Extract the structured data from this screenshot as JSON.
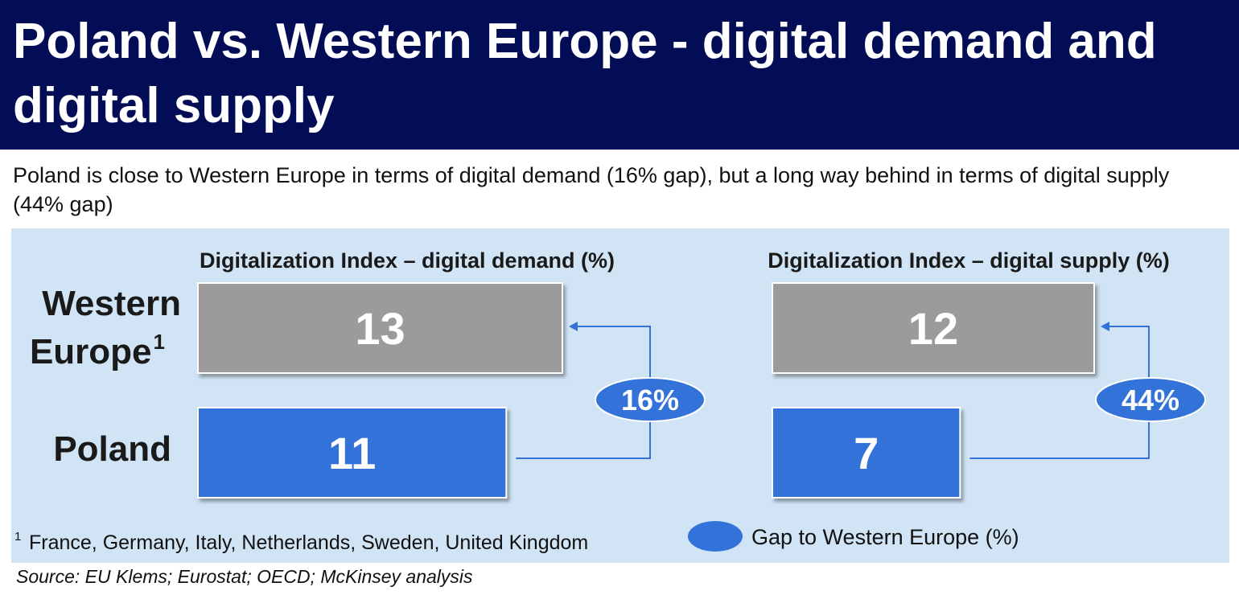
{
  "title": "Poland vs. Western Europe - digital demand and digital supply",
  "subtitle": "Poland is close to Western Europe in terms of digital demand (16% gap), but a long way behind in terms of digital supply (44% gap)",
  "categories": [
    "Western Europe",
    "Poland"
  ],
  "footnote_marker": "1",
  "footnote": "France, Germany, Italy, Netherlands, Sweden, United Kingdom",
  "legend": "Gap to Western Europe (%)",
  "source": "Source: EU Klems; Eurostat; OECD; McKinsey analysis",
  "colors": {
    "header": "#020d55",
    "panel": "#d0e4f5",
    "western_europe": "#9b9b9b",
    "poland": "#3272d9",
    "gap": "#3272d9"
  },
  "chart_data": [
    {
      "type": "bar",
      "title": "Digitalization Index – digital demand (%)",
      "categories": [
        "Western Europe",
        "Poland"
      ],
      "values": [
        13,
        11
      ],
      "gap_label": "16%",
      "xlim": [
        0,
        13
      ]
    },
    {
      "type": "bar",
      "title": "Digitalization Index – digital supply (%)",
      "categories": [
        "Western Europe",
        "Poland"
      ],
      "values": [
        12,
        7
      ],
      "gap_label": "44%",
      "xlim": [
        0,
        12
      ]
    }
  ]
}
